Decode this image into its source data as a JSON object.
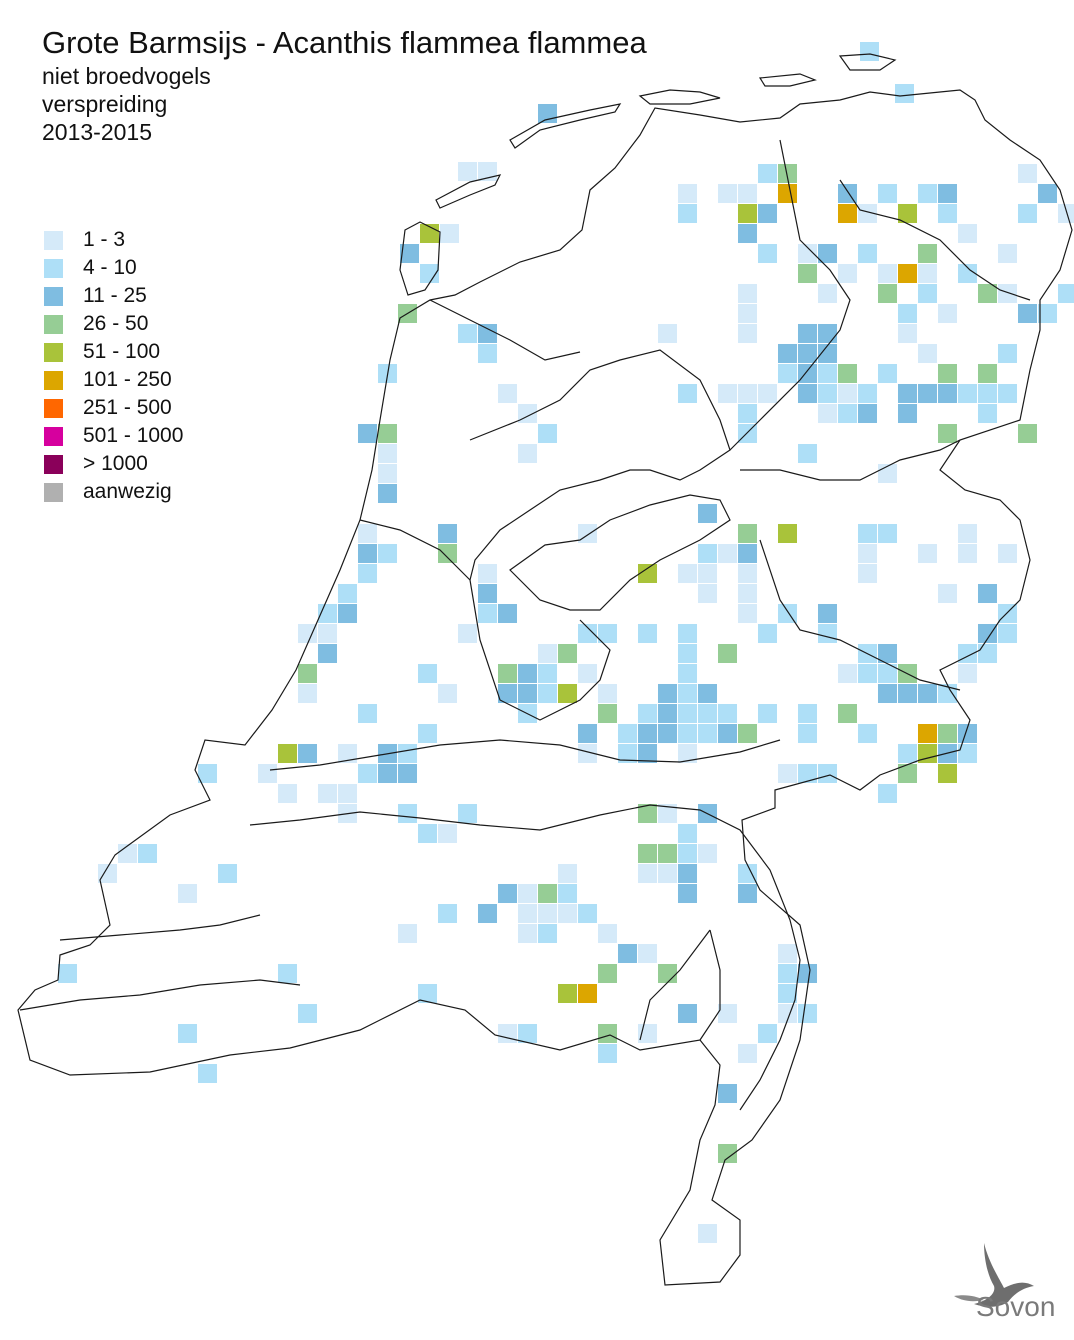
{
  "header": {
    "title": "Grote Barmsijs - Acanthis flammea flammea",
    "subtitle_1": "niet broedvogels",
    "subtitle_2": "verspreiding",
    "subtitle_3": "2013-2015"
  },
  "legend": {
    "items": [
      {
        "label": "1 - 3",
        "color": "#d5eaf9"
      },
      {
        "label": "4 - 10",
        "color": "#aedff7"
      },
      {
        "label": "11 - 25",
        "color": "#7fbde1"
      },
      {
        "label": "26 - 50",
        "color": "#96cd95"
      },
      {
        "label": "51 - 100",
        "color": "#a9c33a"
      },
      {
        "label": "101 - 250",
        "color": "#dca600"
      },
      {
        "label": "251 - 500",
        "color": "#ff6700"
      },
      {
        "label": "501 - 1000",
        "color": "#d6009e"
      },
      {
        "label": "> 1000",
        "color": "#8a005a"
      },
      {
        "label": "aanwezig",
        "color": "#b0b0b0"
      }
    ]
  },
  "logo": {
    "name": "Sovon",
    "icon": "swallow-icon"
  }
}
